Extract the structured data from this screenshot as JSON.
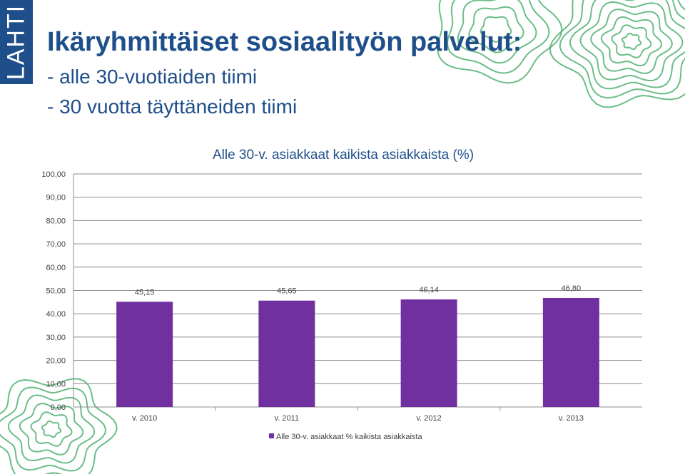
{
  "header": {
    "logo_text": "LAHTI",
    "title": "Ikäryhmittäiset sosiaalityön palvelut:",
    "subtitle_lines": [
      "- alle 30-vuotiaiden tiimi",
      "- 30 vuotta täyttäneiden tiimi"
    ]
  },
  "colors": {
    "brand": "#1f4f8a",
    "bar": "#7030a0",
    "pattern": "#3aa860"
  },
  "chart_data": {
    "type": "bar",
    "title": "Alle 30-v. asiakkaat kaikista asiakkaista (%)",
    "categories": [
      "v. 2010",
      "v. 2011",
      "v. 2012",
      "v. 2013"
    ],
    "series": [
      {
        "name": "Alle 30-v. asiakkaat % kaikista asiakkaista",
        "values": [
          45.15,
          45.65,
          46.14,
          46.8
        ]
      }
    ],
    "data_labels": [
      "45,15",
      "45,65",
      "46,14",
      "46,80"
    ],
    "y_ticks": [
      "0,00",
      "10,00",
      "20,00",
      "30,00",
      "40,00",
      "50,00",
      "60,00",
      "70,00",
      "80,00",
      "90,00",
      "100,00"
    ],
    "ylim": [
      0,
      100
    ],
    "y_step": 10,
    "grid": true,
    "legend_position": "bottom"
  }
}
